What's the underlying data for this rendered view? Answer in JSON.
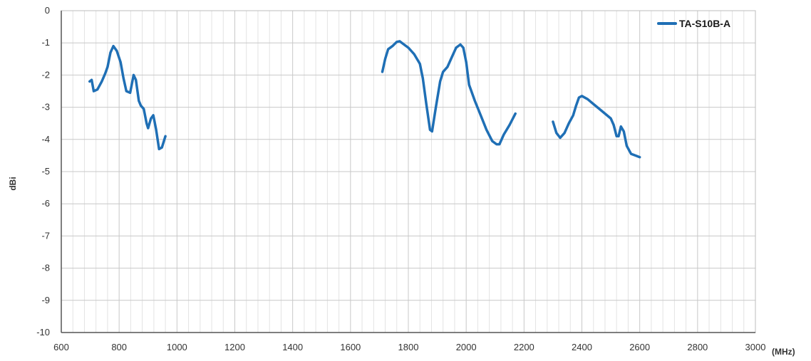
{
  "chart_data": {
    "type": "line",
    "title": "",
    "xlabel": "(MHz)",
    "ylabel": "dBi",
    "xlim": [
      600,
      3000
    ],
    "ylim": [
      -10,
      0
    ],
    "x_ticks": [
      600,
      800,
      1000,
      1200,
      1400,
      1600,
      1800,
      2000,
      2200,
      2400,
      2600,
      2800,
      3000
    ],
    "y_ticks": [
      0,
      -1,
      -2,
      -3,
      -4,
      -5,
      -6,
      -7,
      -8,
      -9,
      -10
    ],
    "x_tick_labels": [
      "600",
      "800",
      "1000",
      "1200",
      "1400",
      "1600",
      "1800",
      "2000",
      "2200",
      "2400",
      "2600",
      "2800",
      "3000"
    ],
    "y_tick_labels": [
      "0",
      "-1",
      "-2",
      "-3",
      "-4",
      "-5",
      "-6",
      "-7",
      "-8",
      "-9",
      "-10"
    ],
    "grid": true,
    "legend_position": "top-right",
    "series_color": "#1f6fb5",
    "series": [
      {
        "name": "TA-S10B-A",
        "segments": [
          [
            [
              698,
              -2.2
            ],
            [
              705,
              -2.15
            ],
            [
              712,
              -2.5
            ],
            [
              725,
              -2.45
            ],
            [
              740,
              -2.2
            ],
            [
              752,
              -1.95
            ],
            [
              760,
              -1.75
            ],
            [
              770,
              -1.3
            ],
            [
              780,
              -1.1
            ],
            [
              792,
              -1.25
            ],
            [
              805,
              -1.6
            ],
            [
              815,
              -2.1
            ],
            [
              825,
              -2.5
            ],
            [
              838,
              -2.55
            ],
            [
              850,
              -2.0
            ],
            [
              858,
              -2.15
            ],
            [
              868,
              -2.8
            ],
            [
              875,
              -2.95
            ],
            [
              885,
              -3.05
            ],
            [
              895,
              -3.5
            ],
            [
              900,
              -3.65
            ],
            [
              910,
              -3.35
            ],
            [
              918,
              -3.25
            ],
            [
              928,
              -3.7
            ],
            [
              938,
              -4.3
            ],
            [
              948,
              -4.25
            ],
            [
              960,
              -3.9
            ]
          ],
          [
            [
              1710,
              -1.9
            ],
            [
              1720,
              -1.5
            ],
            [
              1730,
              -1.2
            ],
            [
              1745,
              -1.1
            ],
            [
              1760,
              -0.97
            ],
            [
              1770,
              -0.95
            ],
            [
              1785,
              -1.05
            ],
            [
              1800,
              -1.15
            ],
            [
              1820,
              -1.35
            ],
            [
              1840,
              -1.65
            ],
            [
              1850,
              -2.1
            ],
            [
              1862,
              -2.9
            ],
            [
              1875,
              -3.7
            ],
            [
              1882,
              -3.75
            ],
            [
              1895,
              -3.0
            ],
            [
              1910,
              -2.2
            ],
            [
              1920,
              -1.9
            ],
            [
              1935,
              -1.75
            ],
            [
              1950,
              -1.45
            ],
            [
              1965,
              -1.15
            ],
            [
              1980,
              -1.05
            ],
            [
              1990,
              -1.15
            ],
            [
              2000,
              -1.6
            ],
            [
              2010,
              -2.3
            ],
            [
              2030,
              -2.8
            ],
            [
              2050,
              -3.25
            ],
            [
              2070,
              -3.7
            ],
            [
              2090,
              -4.05
            ],
            [
              2105,
              -4.15
            ],
            [
              2115,
              -4.15
            ],
            [
              2130,
              -3.85
            ],
            [
              2150,
              -3.55
            ],
            [
              2170,
              -3.2
            ]
          ],
          [
            [
              2300,
              -3.45
            ],
            [
              2312,
              -3.8
            ],
            [
              2325,
              -3.95
            ],
            [
              2340,
              -3.8
            ],
            [
              2355,
              -3.5
            ],
            [
              2370,
              -3.25
            ],
            [
              2380,
              -2.95
            ],
            [
              2390,
              -2.7
            ],
            [
              2400,
              -2.65
            ],
            [
              2420,
              -2.75
            ],
            [
              2440,
              -2.9
            ],
            [
              2460,
              -3.05
            ],
            [
              2480,
              -3.2
            ],
            [
              2500,
              -3.35
            ],
            [
              2510,
              -3.55
            ],
            [
              2520,
              -3.9
            ],
            [
              2527,
              -3.9
            ],
            [
              2535,
              -3.6
            ],
            [
              2545,
              -3.75
            ],
            [
              2555,
              -4.2
            ],
            [
              2570,
              -4.45
            ],
            [
              2585,
              -4.5
            ],
            [
              2600,
              -4.55
            ]
          ]
        ]
      }
    ]
  }
}
